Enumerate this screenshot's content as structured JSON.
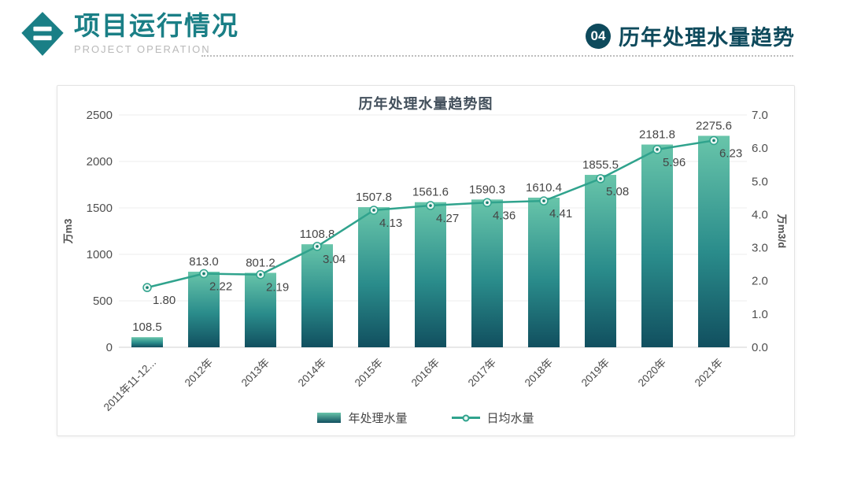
{
  "header": {
    "title": "项目运行情况",
    "subtitle": "PROJECT OPERATION",
    "accent_color": "#1a7f86",
    "section": {
      "badge": "04",
      "title": "历年处理水量趋势",
      "color": "#0e4a5c"
    }
  },
  "chart_data": {
    "type": "bar",
    "title": "历年处理水量趋势图",
    "categories": [
      "2011年11-12...",
      "2012年",
      "2013年",
      "2014年",
      "2015年",
      "2016年",
      "2017年",
      "2018年",
      "2019年",
      "2020年",
      "2021年"
    ],
    "series": [
      {
        "name": "年处理水量",
        "type": "bar",
        "axis": "left",
        "values": [
          108.5,
          813.0,
          801.2,
          1108.8,
          1507.8,
          1561.6,
          1590.3,
          1610.4,
          1855.5,
          2181.8,
          2275.6
        ]
      },
      {
        "name": "日均水量",
        "type": "line",
        "axis": "right",
        "values": [
          1.8,
          2.22,
          2.19,
          3.04,
          4.13,
          4.27,
          4.36,
          4.41,
          5.08,
          5.96,
          6.23
        ]
      }
    ],
    "left_axis": {
      "label": "万m3",
      "min": 0,
      "max": 2500,
      "step": 500,
      "tick_decimals": 0
    },
    "right_axis": {
      "label": "万m3/d",
      "min": 0,
      "max": 7,
      "step": 1,
      "tick_decimals": 1
    },
    "grid": true,
    "legend_position": "bottom",
    "colors": {
      "bar_top": "#68c5aa",
      "bar_mid": "#2a8c8b",
      "bar_bottom": "#114f5f",
      "line": "#30a38d",
      "marker_fill": "#e9f6f2",
      "marker_core": "#157f6f",
      "gridline": "#ececec",
      "baseline": "#d0d0d0"
    }
  }
}
